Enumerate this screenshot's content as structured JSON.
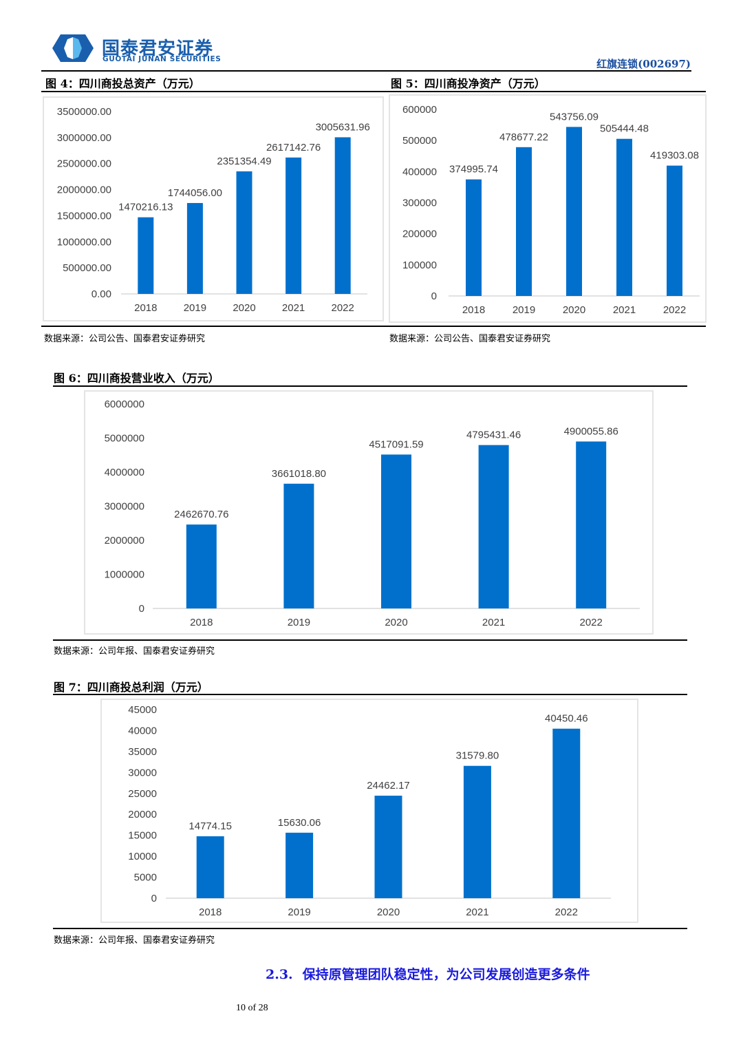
{
  "header": {
    "logo_cn": "国泰君安证券",
    "logo_en": "GUOTAI JUNAN SECURITIES",
    "ticker": "红旗连锁(002697)"
  },
  "colors": {
    "bar": "#0070cc",
    "brand": "#1a5fad",
    "section_heading": "#1a1adc",
    "axis": "#d9d9d9"
  },
  "figures": [
    {
      "title": "图 4：四川商投总资产（万元）",
      "source": "数据来源：公司公告、国泰君安证券研究"
    },
    {
      "title": "图 5：四川商投净资产（万元）",
      "source": "数据来源：公司公告、国泰君安证券研究"
    },
    {
      "title": "图 6：四川商投营业收入（万元）",
      "source": "数据来源：公司年报、国泰君安证券研究"
    },
    {
      "title": "图 7：四川商投总利润（万元）",
      "source": "数据来源：公司年报、国泰君安证券研究"
    }
  ],
  "chart_data": [
    {
      "type": "bar",
      "title": "图 4：四川商投总资产（万元）",
      "categories": [
        "2018",
        "2019",
        "2020",
        "2021",
        "2022"
      ],
      "values": [
        1470216.13,
        1744056.0,
        2351354.49,
        2617142.76,
        3005631.96
      ],
      "labels": [
        "1470216.13",
        "1744056.00",
        "2351354.49",
        "2617142.76",
        "3005631.96"
      ],
      "yticks": [
        "0.00",
        "500000.00",
        "1000000.00",
        "1500000.00",
        "2000000.00",
        "2500000.00",
        "3000000.00",
        "3500000.00"
      ],
      "ylim": [
        0,
        3500000
      ],
      "xlabel": "",
      "ylabel": "",
      "grid": false
    },
    {
      "type": "bar",
      "title": "图 5：四川商投净资产（万元）",
      "categories": [
        "2018",
        "2019",
        "2020",
        "2021",
        "2022"
      ],
      "values": [
        374995.74,
        478677.22,
        543756.09,
        505444.48,
        419303.08
      ],
      "labels": [
        "374995.74",
        "478677.22",
        "543756.09",
        "505444.48",
        "419303.08"
      ],
      "yticks": [
        "0",
        "100000",
        "200000",
        "300000",
        "400000",
        "500000",
        "600000"
      ],
      "ylim": [
        0,
        600000
      ],
      "xlabel": "",
      "ylabel": "",
      "grid": false
    },
    {
      "type": "bar",
      "title": "图 6：四川商投营业收入（万元）",
      "categories": [
        "2018",
        "2019",
        "2020",
        "2021",
        "2022"
      ],
      "values": [
        2462670.76,
        3661018.8,
        4517091.59,
        4795431.46,
        4900055.86
      ],
      "labels": [
        "2462670.76",
        "3661018.80",
        "4517091.59",
        "4795431.46",
        "4900055.86"
      ],
      "yticks": [
        "0",
        "1000000",
        "2000000",
        "3000000",
        "4000000",
        "5000000",
        "6000000"
      ],
      "ylim": [
        0,
        6000000
      ],
      "xlabel": "",
      "ylabel": "",
      "grid": false
    },
    {
      "type": "bar",
      "title": "图 7：四川商投总利润（万元）",
      "categories": [
        "2018",
        "2019",
        "2020",
        "2021",
        "2022"
      ],
      "values": [
        14774.15,
        15630.06,
        24462.17,
        31579.8,
        40450.46
      ],
      "labels": [
        "14774.15",
        "15630.06",
        "24462.17",
        "31579.80",
        "40450.46"
      ],
      "yticks": [
        "0",
        "5000",
        "10000",
        "15000",
        "20000",
        "25000",
        "30000",
        "35000",
        "40000",
        "45000"
      ],
      "ylim": [
        0,
        45000
      ],
      "xlabel": "",
      "ylabel": "",
      "grid": false
    }
  ],
  "section": {
    "number": "2.3.",
    "title": "保持原管理团队稳定性，为公司发展创造更多条件"
  },
  "footer": {
    "page": "10 of 28"
  }
}
